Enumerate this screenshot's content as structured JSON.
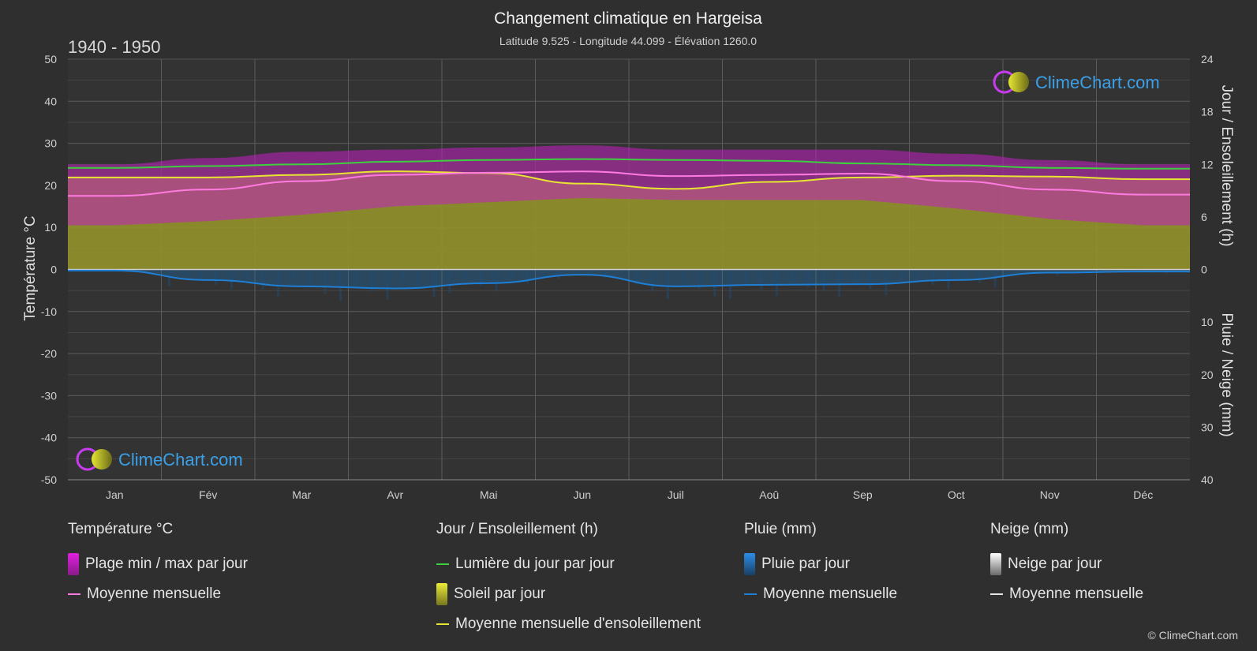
{
  "chart_data": {
    "type": "area",
    "title": "Changement climatique en Hargeisa",
    "subtitle": "Latitude 9.525 - Longitude 44.099 - Élévation 1260.0",
    "period": "1940 - 1950",
    "brand": "ClimeChart.com",
    "copyright": "© ClimeChart.com",
    "ylabel_left": "Température °C",
    "ylabel_right_top": "Jour / Ensoleillement (h)",
    "ylabel_right_bottom": "Pluie / Neige (mm)",
    "left_ticks": [
      "50",
      "40",
      "30",
      "20",
      "10",
      "0",
      "-10",
      "-20",
      "-30",
      "-40",
      "-50"
    ],
    "right_ticks_top": [
      "24",
      "18",
      "12",
      "6",
      "0"
    ],
    "right_ticks_bottom": [
      "10",
      "20",
      "30",
      "40"
    ],
    "ylim_temp": [
      -50,
      50
    ],
    "ylim_sun_hours": [
      0,
      24
    ],
    "ylim_rain_mm": [
      0,
      40
    ],
    "months": [
      "Jan",
      "Fév",
      "Mar",
      "Avr",
      "Mai",
      "Jun",
      "Juil",
      "Aoû",
      "Sep",
      "Oct",
      "Nov",
      "Déc"
    ],
    "series": [
      {
        "name": "Lumière du jour par jour",
        "unit": "h",
        "color": "#3ecf3e",
        "values": [
          11.6,
          11.8,
          12.0,
          12.3,
          12.5,
          12.6,
          12.5,
          12.4,
          12.1,
          11.9,
          11.6,
          11.5
        ]
      },
      {
        "name": "Moyenne mensuelle d'ensoleillement",
        "unit": "h",
        "color": "#e6e632",
        "values": [
          10.5,
          10.5,
          10.8,
          11.2,
          11.0,
          9.8,
          9.2,
          10.0,
          10.5,
          10.7,
          10.6,
          10.3
        ]
      },
      {
        "name": "Moyenne mensuelle",
        "unit": "°C",
        "color": "#ff7ae0",
        "values": [
          17.5,
          19.0,
          21.0,
          22.5,
          23.0,
          23.3,
          22.2,
          22.5,
          22.8,
          21.0,
          19.0,
          17.8
        ]
      },
      {
        "name": "Temp max par jour",
        "unit": "°C",
        "values": [
          25.0,
          26.5,
          28.0,
          28.5,
          29.0,
          29.5,
          28.5,
          28.5,
          28.5,
          27.5,
          26.0,
          25.0
        ]
      },
      {
        "name": "Temp min par jour",
        "unit": "°C",
        "values": [
          10.5,
          11.5,
          13.0,
          15.0,
          16.0,
          17.0,
          16.5,
          16.5,
          16.5,
          14.5,
          12.0,
          10.5
        ]
      },
      {
        "name": "Pluie moyenne mensuelle",
        "unit": "mm",
        "color": "#1e7fd6",
        "values": [
          0.2,
          2.0,
          3.2,
          3.6,
          2.6,
          1.0,
          3.2,
          2.9,
          2.8,
          2.0,
          0.6,
          0.4
        ]
      }
    ]
  },
  "legend": {
    "temp": {
      "head": "Température °C",
      "range": "Plage min / max par jour",
      "mean": "Moyenne mensuelle"
    },
    "sun": {
      "head": "Jour / Ensoleillement (h)",
      "daylight": "Lumière du jour par jour",
      "sun": "Soleil par jour",
      "sun_mean": "Moyenne mensuelle d'ensoleillement"
    },
    "rain": {
      "head": "Pluie (mm)",
      "daily": "Pluie par jour",
      "mean": "Moyenne mensuelle"
    },
    "snow": {
      "head": "Neige (mm)",
      "daily": "Neige par jour",
      "mean": "Moyenne mensuelle"
    }
  },
  "colors": {
    "background": "#2f2f2f",
    "temp_range": "#c21fc2",
    "sun_fill": "#9e9e2c",
    "rain": "#1e6fb8",
    "grid": "#5a5a5a"
  }
}
